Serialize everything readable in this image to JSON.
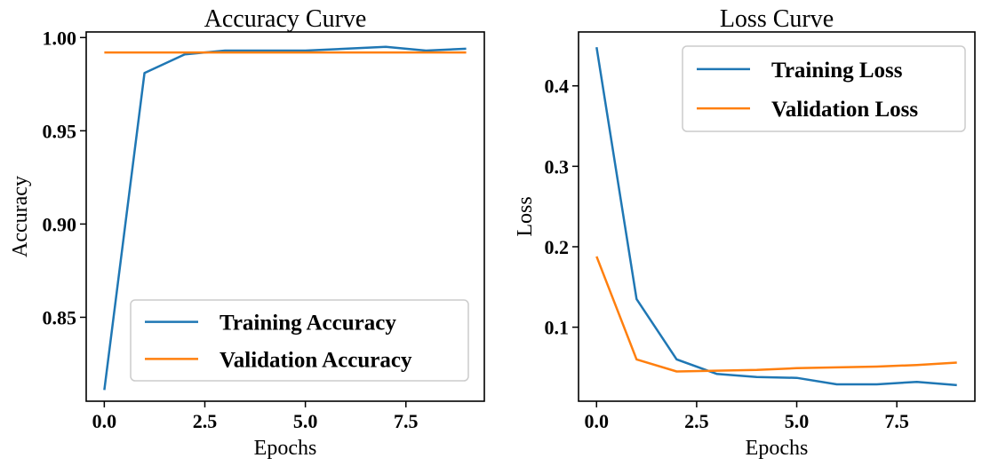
{
  "chart_data": [
    {
      "type": "line",
      "title": "Accuracy Curve",
      "xlabel": "Epochs",
      "ylabel": "Accuracy",
      "xlim": [
        -0.45,
        9.45
      ],
      "ylim": [
        0.805,
        1.003
      ],
      "xticks": [
        0.0,
        2.5,
        5.0,
        7.5
      ],
      "xtick_labels": [
        "0.0",
        "2.5",
        "5.0",
        "7.5"
      ],
      "yticks": [
        0.85,
        0.9,
        0.95,
        1.0
      ],
      "ytick_labels": [
        "0.85",
        "0.90",
        "0.95",
        "1.00"
      ],
      "legend_position": "lower-right",
      "x": [
        0,
        1,
        2,
        3,
        4,
        5,
        6,
        7,
        8,
        9
      ],
      "series": [
        {
          "name": "Training Accuracy",
          "color": "#1f77b4",
          "values": [
            0.811,
            0.981,
            0.991,
            0.993,
            0.993,
            0.993,
            0.994,
            0.995,
            0.993,
            0.994
          ]
        },
        {
          "name": "Validation Accuracy",
          "color": "#ff7f0e",
          "values": [
            0.992,
            0.992,
            0.992,
            0.992,
            0.992,
            0.992,
            0.992,
            0.992,
            0.992,
            0.992
          ]
        }
      ]
    },
    {
      "type": "line",
      "title": "Loss Curve",
      "xlabel": "Epochs",
      "ylabel": "Loss",
      "xlim": [
        -0.45,
        9.45
      ],
      "ylim": [
        0.008,
        0.467
      ],
      "xticks": [
        0.0,
        2.5,
        5.0,
        7.5
      ],
      "xtick_labels": [
        "0.0",
        "2.5",
        "5.0",
        "7.5"
      ],
      "yticks": [
        0.1,
        0.2,
        0.3,
        0.4
      ],
      "ytick_labels": [
        "0.1",
        "0.2",
        "0.3",
        "0.4"
      ],
      "legend_position": "upper-right",
      "x": [
        0,
        1,
        2,
        3,
        4,
        5,
        6,
        7,
        8,
        9
      ],
      "series": [
        {
          "name": "Training Loss",
          "color": "#1f77b4",
          "values": [
            0.448,
            0.135,
            0.06,
            0.042,
            0.038,
            0.037,
            0.029,
            0.029,
            0.032,
            0.028
          ]
        },
        {
          "name": "Validation Loss",
          "color": "#ff7f0e",
          "values": [
            0.188,
            0.06,
            0.045,
            0.046,
            0.047,
            0.049,
            0.05,
            0.051,
            0.053,
            0.056
          ]
        }
      ]
    }
  ]
}
